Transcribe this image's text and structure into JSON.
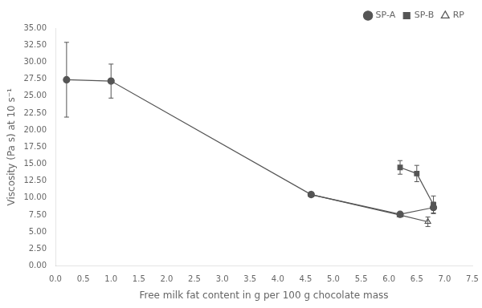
{
  "chart_data": {
    "type": "line",
    "xlabel": "Free milk fat content in g per 100 g chocolate mass",
    "ylabel": "Viscosity (Pa s) at 10 s⁻¹",
    "xlim": [
      0.0,
      7.5
    ],
    "ylim": [
      0.0,
      35.0
    ],
    "xticks": [
      {
        "value": 0.0,
        "label": "0.0"
      },
      0.5,
      {
        "value": 1.0,
        "label": "1.0"
      },
      1.5,
      {
        "value": 2.0,
        "label": "2.0"
      },
      2.5,
      {
        "value": 3.0,
        "label": "3.0"
      },
      3.5,
      {
        "value": 4.0,
        "label": "4.0"
      },
      4.5,
      {
        "value": 5.0,
        "label": "5.0"
      },
      5.5,
      {
        "value": 6.0,
        "label": "6.0"
      },
      6.5,
      {
        "value": 7.0,
        "label": "7.0"
      },
      7.5
    ],
    "yticks": [
      {
        "value": 0.0,
        "label": "0.00"
      },
      {
        "value": 2.5,
        "label": "2.50"
      },
      {
        "value": 5.0,
        "label": "5.00"
      },
      {
        "value": 7.5,
        "label": "7.50"
      },
      {
        "value": 10.0,
        "label": "10.00"
      },
      {
        "value": 12.5,
        "label": "12.50"
      },
      {
        "value": 15.0,
        "label": "15.00"
      },
      {
        "value": 17.5,
        "label": "17.50"
      },
      {
        "value": 20.0,
        "label": "20.00"
      },
      {
        "value": 22.5,
        "label": "22.50"
      },
      {
        "value": 25.0,
        "label": "25.00"
      },
      {
        "value": 27.5,
        "label": "27.50"
      },
      {
        "value": 30.0,
        "label": "30.00"
      },
      {
        "value": 32.5,
        "label": "32.50"
      },
      {
        "value": 35.0,
        "label": "35.00"
      }
    ],
    "grid": false,
    "legend": "upper right",
    "series": [
      {
        "name": "SP-A",
        "color": "#555555",
        "marker": "circle",
        "x": [
          0.2,
          1.0,
          4.6,
          6.2,
          6.8
        ],
        "values": [
          27.4,
          27.2,
          10.5,
          7.6,
          8.6
        ],
        "yerr": [
          5.5,
          2.5,
          0.3,
          0.3,
          0.8
        ]
      },
      {
        "name": "SP-B",
        "color": "#555555",
        "marker": "square",
        "x": [
          6.2,
          6.5,
          6.8
        ],
        "values": [
          14.5,
          13.6,
          9.0
        ],
        "yerr": [
          1.0,
          1.2,
          1.3
        ]
      },
      {
        "name": "RP",
        "color": "#555555",
        "marker": "open_triangle",
        "x": [
          4.6,
          6.2,
          6.7
        ],
        "values": [
          10.5,
          7.5,
          6.5
        ],
        "yerr": [
          0.3,
          0.3,
          0.7
        ]
      }
    ]
  }
}
